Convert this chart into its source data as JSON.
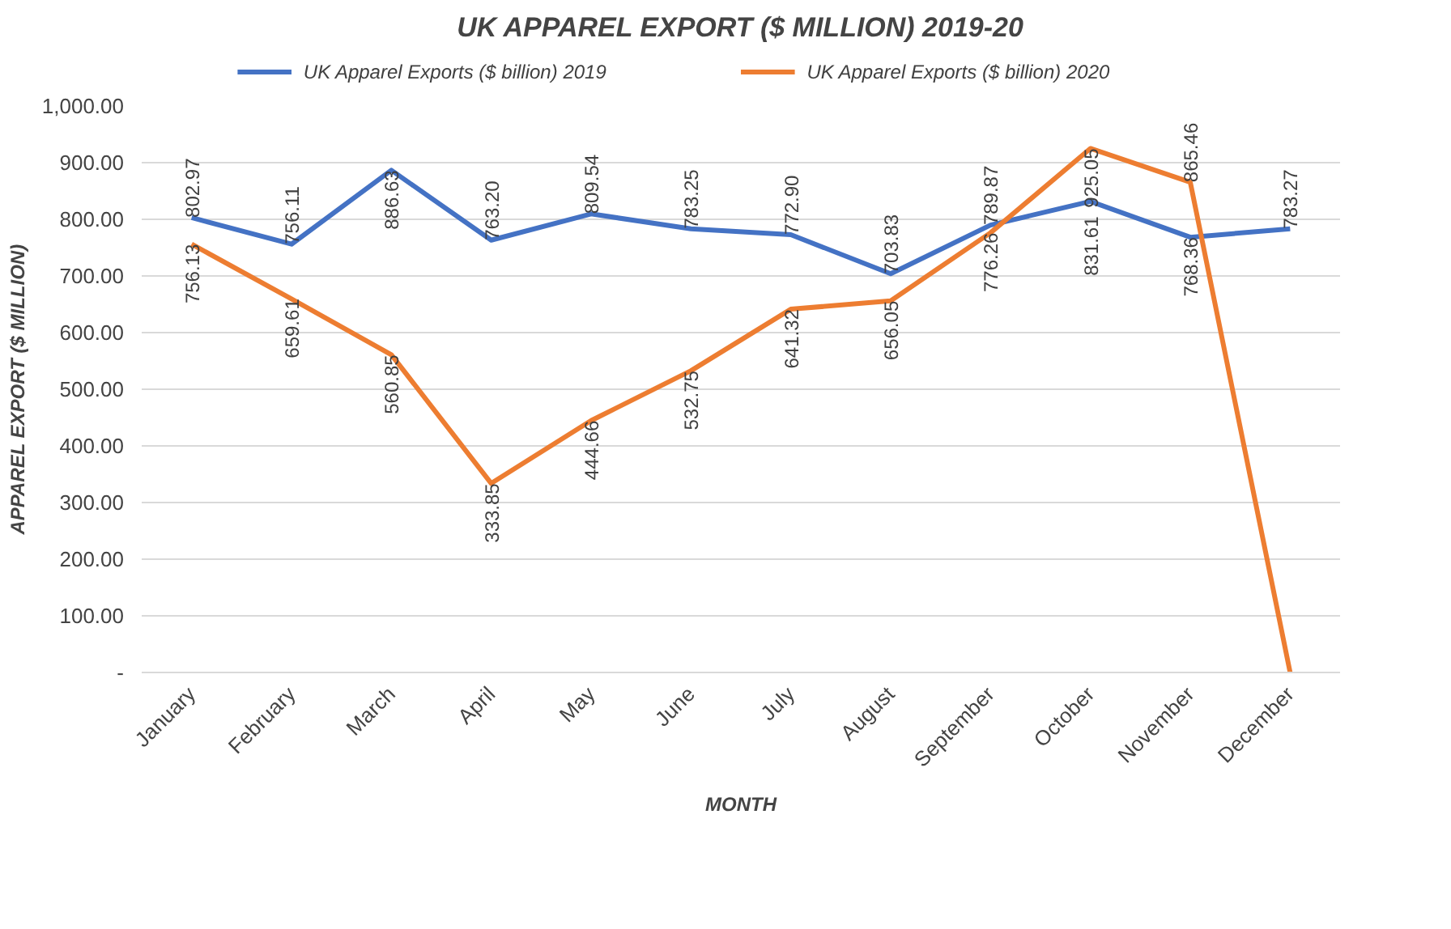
{
  "chart_data": {
    "type": "line",
    "title": "UK APPAREL EXPORT ($ MILLION) 2019-20",
    "xlabel": "MONTH",
    "ylabel": "APPAREL EXPORT ($ MILLION)",
    "categories": [
      "January",
      "February",
      "March",
      "April",
      "May",
      "June",
      "July",
      "August",
      "September",
      "October",
      "November",
      "December"
    ],
    "series": [
      {
        "name": "UK Apparel Exports ($ billion) 2019",
        "color": "#4472c4",
        "values": [
          802.97,
          756.11,
          886.63,
          763.2,
          809.54,
          783.25,
          772.9,
          703.83,
          789.87,
          831.61,
          768.36,
          783.27
        ],
        "value_labels": [
          "802.97",
          "756.11",
          "886.63",
          "763.20",
          "809.54",
          "783.25",
          "772.90",
          "703.83",
          "789.87",
          "831.61",
          "768.36",
          "783.27"
        ]
      },
      {
        "name": "UK Apparel Exports ($ billion) 2020",
        "color": "#ed7d31",
        "values": [
          756.13,
          659.61,
          560.85,
          333.85,
          444.66,
          532.75,
          641.32,
          656.05,
          776.26,
          925.05,
          865.46,
          0
        ],
        "value_labels": [
          "756.13",
          "659.61",
          "560.85",
          "333.85",
          "444.66",
          "532.75",
          "641.32",
          "656.05",
          "776.26",
          "925.05",
          "865.46",
          null
        ]
      }
    ],
    "ylim": [
      0,
      1000
    ],
    "yticks": [
      {
        "value": 0,
        "label": "-"
      },
      {
        "value": 100,
        "label": "100.00"
      },
      {
        "value": 200,
        "label": "200.00"
      },
      {
        "value": 300,
        "label": "300.00"
      },
      {
        "value": 400,
        "label": "400.00"
      },
      {
        "value": 500,
        "label": "500.00"
      },
      {
        "value": 600,
        "label": "600.00"
      },
      {
        "value": 700,
        "label": "700.00"
      },
      {
        "value": 800,
        "label": "800.00"
      },
      {
        "value": 900,
        "label": "900.00"
      },
      {
        "value": 1000,
        "label": "1,000.00"
      }
    ],
    "grid": "y",
    "legend": "top",
    "line_style": "solid",
    "marker": "none"
  }
}
